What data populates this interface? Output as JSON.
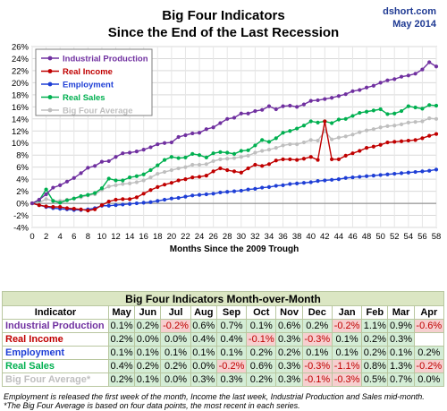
{
  "header": {
    "title_line1": "Big Four Indicators",
    "title_line2": "Since the End of the Last Recession",
    "source": "dshort.com",
    "date": "May 2014"
  },
  "colors": {
    "industrial": "#7030a0",
    "income": "#c00000",
    "employment": "#1f3fd6",
    "sales": "#00b050",
    "average": "#bfbfbf",
    "positive_cell": "#d4edd6",
    "negative_cell": "#f6cfcf"
  },
  "chart_data": {
    "type": "line",
    "xlabel": "Months Since the 2009 Trough",
    "ylabel": "",
    "xlim": [
      0,
      58
    ],
    "ylim": [
      -4,
      26
    ],
    "x_ticks": [
      "0",
      "2",
      "4",
      "6",
      "8",
      "10",
      "12",
      "14",
      "16",
      "18",
      "20",
      "22",
      "24",
      "26",
      "28",
      "30",
      "32",
      "34",
      "36",
      "38",
      "40",
      "42",
      "44",
      "46",
      "48",
      "50",
      "52",
      "54",
      "56",
      "58"
    ],
    "y_ticks": [
      "-4%",
      "-2%",
      "0%",
      "2%",
      "4%",
      "6%",
      "8%",
      "10%",
      "12%",
      "14%",
      "16%",
      "18%",
      "20%",
      "22%",
      "24%",
      "26%"
    ],
    "grid": true,
    "legend_position": "top-left",
    "series": [
      {
        "name": "Industrial Production",
        "key": "industrial",
        "values": [
          0,
          0.6,
          1.5,
          2.6,
          3.0,
          3.6,
          4.2,
          5.0,
          5.9,
          6.2,
          6.9,
          7.0,
          7.7,
          8.3,
          8.4,
          8.6,
          8.9,
          9.3,
          9.8,
          10.0,
          10.1,
          11.0,
          11.3,
          11.6,
          11.7,
          12.3,
          12.6,
          13.3,
          14.0,
          14.2,
          14.9,
          14.9,
          15.3,
          15.5,
          16.1,
          15.6,
          16.1,
          16.2,
          16.0,
          16.4,
          17.0,
          17.1,
          17.3,
          17.5,
          17.8,
          18.1,
          18.6,
          18.8,
          19.2,
          19.5,
          20.0,
          20.4,
          20.6,
          21.0,
          21.2,
          21.5,
          22.2,
          23.4,
          22.7
        ]
      },
      {
        "name": "Real Income",
        "key": "income",
        "values": [
          0,
          -0.3,
          -0.5,
          -0.6,
          -0.6,
          -0.8,
          -0.9,
          -1.0,
          -1.2,
          -1.0,
          -0.3,
          0.3,
          0.6,
          0.7,
          0.7,
          1.0,
          1.6,
          2.2,
          2.7,
          3.1,
          3.4,
          3.8,
          4.0,
          4.3,
          4.4,
          4.6,
          5.3,
          5.8,
          5.5,
          5.3,
          5.1,
          5.8,
          6.4,
          6.2,
          6.5,
          7.1,
          7.3,
          7.3,
          7.2,
          7.4,
          7.7,
          7.2,
          13.6,
          7.3,
          7.3,
          7.9,
          8.3,
          8.7,
          9.2,
          9.4,
          9.7,
          10.1,
          10.2,
          10.3,
          10.4,
          10.5,
          10.8,
          11.2,
          11.5
        ]
      },
      {
        "name": "Employment",
        "key": "employment",
        "values": [
          0,
          -0.3,
          -0.6,
          -0.8,
          -0.9,
          -1.0,
          -1.1,
          -1.1,
          -1.0,
          -0.8,
          -0.4,
          -0.4,
          -0.3,
          -0.2,
          -0.1,
          0,
          0.1,
          0.2,
          0.4,
          0.6,
          0.8,
          0.9,
          1.1,
          1.3,
          1.4,
          1.5,
          1.6,
          1.8,
          1.9,
          2.0,
          2.1,
          2.3,
          2.4,
          2.6,
          2.7,
          2.9,
          3.0,
          3.2,
          3.3,
          3.4,
          3.5,
          3.7,
          3.8,
          3.9,
          4.0,
          4.2,
          4.3,
          4.4,
          4.5,
          4.6,
          4.7,
          4.8,
          4.9,
          5.0,
          5.1,
          5.2,
          5.3,
          5.4,
          5.6
        ]
      },
      {
        "name": "Real Sales",
        "key": "sales",
        "values": [
          0,
          0.5,
          2.3,
          0.4,
          0.1,
          0.5,
          0.8,
          1.2,
          1.4,
          1.7,
          2.5,
          4.1,
          3.8,
          3.8,
          4.3,
          4.5,
          4.8,
          5.5,
          6.3,
          7.2,
          7.7,
          7.5,
          7.6,
          8.2,
          8.0,
          7.6,
          8.3,
          8.5,
          8.4,
          8.2,
          8.7,
          8.8,
          9.6,
          10.5,
          10.2,
          10.8,
          11.7,
          12.0,
          12.4,
          12.9,
          13.6,
          13.4,
          13.6,
          13.3,
          13.9,
          14.0,
          14.5,
          15.0,
          15.2,
          15.4,
          15.6,
          14.8,
          14.9,
          15.3,
          16.1,
          15.9,
          15.7,
          16.3,
          16.2
        ]
      },
      {
        "name": "Big Four Average",
        "key": "average",
        "values": [
          0,
          0.1,
          0.7,
          0.4,
          0.4,
          0.6,
          0.8,
          1.0,
          1.3,
          1.5,
          2.2,
          2.8,
          3.0,
          3.2,
          3.3,
          3.5,
          3.8,
          4.3,
          4.9,
          5.2,
          5.5,
          5.8,
          6.0,
          6.4,
          6.4,
          6.5,
          7.0,
          7.3,
          7.4,
          7.5,
          7.7,
          7.9,
          8.4,
          8.7,
          8.9,
          9.2,
          9.6,
          9.8,
          9.8,
          10.1,
          10.5,
          10.4,
          12.0,
          10.6,
          10.9,
          11.1,
          11.4,
          11.8,
          12.1,
          12.3,
          12.6,
          12.8,
          12.9,
          13.1,
          13.4,
          13.5,
          13.6,
          14.1,
          14.0
        ]
      }
    ]
  },
  "table": {
    "caption": "Big Four Indicators Month-over-Month",
    "col_header_label": "Indicator",
    "months": [
      "May",
      "Jun",
      "Jul",
      "Aug",
      "Sep",
      "Oct",
      "Nov",
      "Dec",
      "Jan",
      "Feb",
      "Mar",
      "Apr"
    ],
    "rows": [
      {
        "label": "Industrial Production",
        "key": "industrial",
        "values": [
          "0.1%",
          "0.2%",
          "-0.2%",
          "0.6%",
          "0.7%",
          "0.1%",
          "0.6%",
          "0.2%",
          "-0.2%",
          "1.1%",
          "0.9%",
          "-0.6%"
        ]
      },
      {
        "label": "Real Income",
        "key": "income",
        "values": [
          "0.2%",
          "0.0%",
          "0.0%",
          "0.4%",
          "0.4%",
          "-0.1%",
          "0.3%",
          "-0.3%",
          "0.1%",
          "0.2%",
          "0.3%",
          ""
        ]
      },
      {
        "label": "Employment",
        "key": "employment",
        "values": [
          "0.1%",
          "0.1%",
          "0.1%",
          "0.1%",
          "0.1%",
          "0.2%",
          "0.2%",
          "0.1%",
          "0.1%",
          "0.2%",
          "0.1%",
          "0.2%"
        ]
      },
      {
        "label": "Real Sales",
        "key": "sales",
        "values": [
          "0.4%",
          "0.2%",
          "0.2%",
          "0.0%",
          "-0.2%",
          "0.6%",
          "0.3%",
          "-0.3%",
          "-1.1%",
          "0.8%",
          "1.3%",
          "-0.2%"
        ]
      },
      {
        "label": "Big Four Average*",
        "key": "average",
        "values": [
          "0.2%",
          "0.1%",
          "0.0%",
          "0.3%",
          "0.3%",
          "0.2%",
          "0.3%",
          "-0.1%",
          "-0.3%",
          "0.5%",
          "0.7%",
          "0.0%"
        ]
      }
    ]
  },
  "notes": {
    "line1": "Employment is released the first week of the month, Income the last week, Industrial Production and Sales mid-month.",
    "line2": "*The Big Four Average is based on four data points, the most recent in each series."
  }
}
